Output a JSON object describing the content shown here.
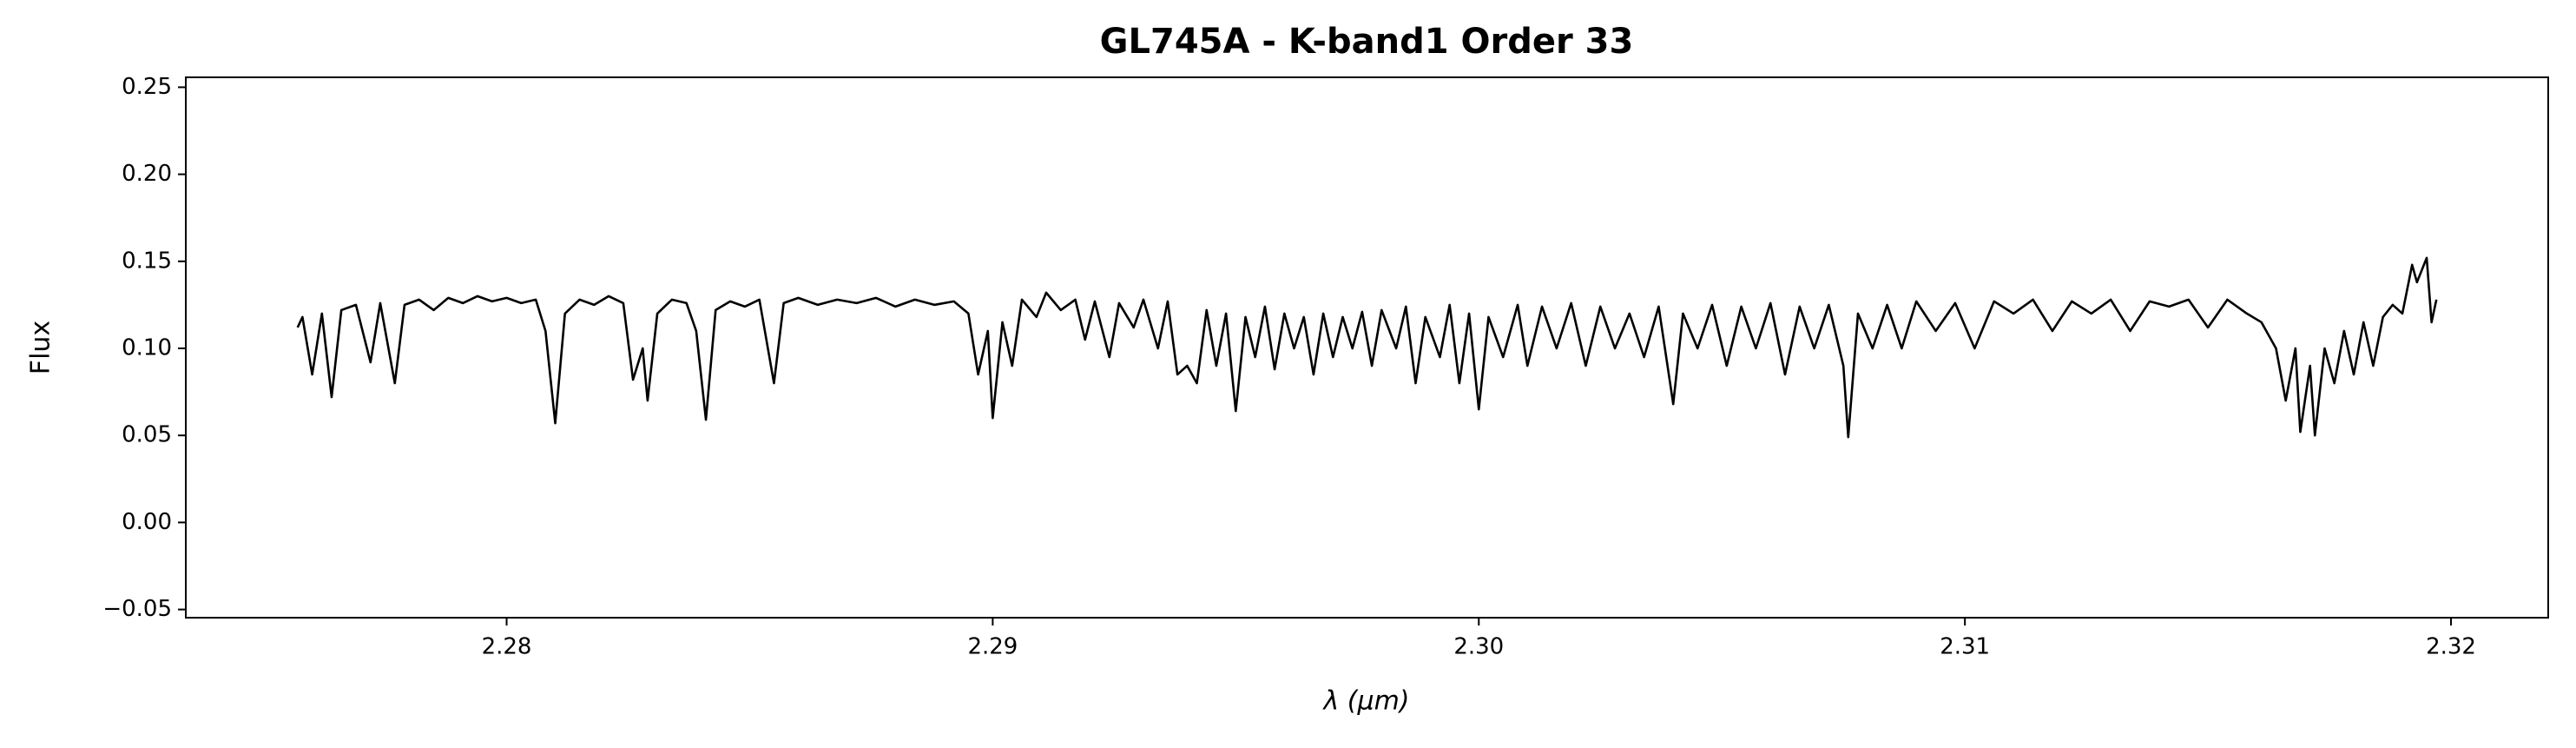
{
  "chart_data": {
    "type": "line",
    "title": "GL745A - K-band1 Order 33",
    "xlabel": "λ (μm)",
    "ylabel": "Flux",
    "color": "#000000",
    "xlim": [
      2.2734,
      2.322
    ],
    "ylim": [
      -0.0547,
      0.2557
    ],
    "xticks": [
      2.28,
      2.29,
      {
        "value": 2.3,
        "label": "2.30"
      },
      2.31,
      2.32
    ],
    "yticks": [
      {
        "value": -0.05,
        "label": "−0.05"
      },
      {
        "value": 0,
        "label": "0.00"
      },
      0.05,
      {
        "value": 0.1,
        "label": "0.10"
      },
      0.15,
      {
        "value": 0.2,
        "label": "0.20"
      },
      0.25
    ],
    "x": [
      2.2757,
      2.2758,
      2.276,
      2.2762,
      2.2764,
      2.2766,
      2.2769,
      2.2772,
      2.2774,
      2.2777,
      2.2779,
      2.2782,
      2.2785,
      2.2788,
      2.2791,
      2.2794,
      2.2797,
      2.28,
      2.2803,
      2.2806,
      2.2808,
      2.281,
      2.2812,
      2.2815,
      2.2818,
      2.2821,
      2.2824,
      2.2826,
      2.2828,
      2.2829,
      2.2831,
      2.2834,
      2.2837,
      2.2839,
      2.2841,
      2.2843,
      2.2846,
      2.2849,
      2.2852,
      2.2855,
      2.2857,
      2.286,
      2.2864,
      2.2868,
      2.2872,
      2.2876,
      2.288,
      2.2884,
      2.2888,
      2.2892,
      2.2895,
      2.2897,
      2.2899,
      2.29,
      2.2902,
      2.2904,
      2.2906,
      2.2909,
      2.2911,
      2.2914,
      2.2917,
      2.2919,
      2.2921,
      2.2924,
      2.2926,
      2.2929,
      2.2931,
      2.2934,
      2.2936,
      2.2938,
      2.294,
      2.2942,
      2.2944,
      2.2946,
      2.2948,
      2.295,
      2.2952,
      2.2954,
      2.2956,
      2.2958,
      2.296,
      2.2962,
      2.2964,
      2.2966,
      2.2968,
      2.297,
      2.2972,
      2.2974,
      2.2976,
      2.2978,
      2.298,
      2.2983,
      2.2985,
      2.2987,
      2.2989,
      2.2992,
      2.2994,
      2.2996,
      2.2998,
      2.3,
      2.3002,
      2.3005,
      2.3008,
      2.301,
      2.3013,
      2.3016,
      2.3019,
      2.3022,
      2.3025,
      2.3028,
      2.3031,
      2.3034,
      2.3037,
      2.304,
      2.3042,
      2.3045,
      2.3048,
      2.3051,
      2.3054,
      2.3057,
      2.306,
      2.3063,
      2.3066,
      2.3069,
      2.3072,
      2.3075,
      2.3076,
      2.3078,
      2.3081,
      2.3084,
      2.3087,
      2.309,
      2.3094,
      2.3098,
      2.3102,
      2.3106,
      2.311,
      2.3114,
      2.3118,
      2.3122,
      2.3126,
      2.313,
      2.3134,
      2.3138,
      2.3142,
      2.3146,
      2.315,
      2.3154,
      2.3158,
      2.3161,
      2.3164,
      2.3166,
      2.3168,
      2.3169,
      2.3171,
      2.3172,
      2.3174,
      2.3176,
      2.3178,
      2.318,
      2.3182,
      2.3184,
      2.3186,
      2.3188,
      2.319,
      2.3192,
      2.3193,
      2.3195,
      2.3196,
      2.3197
    ],
    "values": [
      0.112,
      0.118,
      0.085,
      0.12,
      0.072,
      0.122,
      0.125,
      0.092,
      0.126,
      0.08,
      0.125,
      0.128,
      0.122,
      0.129,
      0.126,
      0.13,
      0.127,
      0.129,
      0.126,
      0.128,
      0.11,
      0.057,
      0.12,
      0.128,
      0.125,
      0.13,
      0.126,
      0.082,
      0.1,
      0.07,
      0.12,
      0.128,
      0.126,
      0.11,
      0.059,
      0.122,
      0.127,
      0.124,
      0.128,
      0.08,
      0.126,
      0.129,
      0.125,
      0.128,
      0.126,
      0.129,
      0.124,
      0.128,
      0.125,
      0.127,
      0.12,
      0.085,
      0.11,
      0.06,
      0.115,
      0.09,
      0.128,
      0.118,
      0.132,
      0.122,
      0.128,
      0.105,
      0.127,
      0.095,
      0.126,
      0.112,
      0.128,
      0.1,
      0.127,
      0.085,
      0.09,
      0.08,
      0.122,
      0.09,
      0.12,
      0.064,
      0.118,
      0.095,
      0.124,
      0.088,
      0.12,
      0.1,
      0.118,
      0.085,
      0.12,
      0.095,
      0.118,
      0.1,
      0.121,
      0.09,
      0.122,
      0.1,
      0.124,
      0.08,
      0.118,
      0.095,
      0.125,
      0.08,
      0.12,
      0.065,
      0.118,
      0.095,
      0.125,
      0.09,
      0.124,
      0.1,
      0.126,
      0.09,
      0.124,
      0.1,
      0.12,
      0.095,
      0.124,
      0.068,
      0.12,
      0.1,
      0.125,
      0.09,
      0.124,
      0.1,
      0.126,
      0.085,
      0.124,
      0.1,
      0.125,
      0.09,
      0.049,
      0.12,
      0.1,
      0.125,
      0.1,
      0.127,
      0.11,
      0.126,
      0.1,
      0.127,
      0.12,
      0.128,
      0.11,
      0.127,
      0.12,
      0.128,
      0.11,
      0.127,
      0.124,
      0.128,
      0.112,
      0.128,
      0.12,
      0.115,
      0.1,
      0.07,
      0.1,
      0.052,
      0.09,
      0.05,
      0.1,
      0.08,
      0.11,
      0.085,
      0.115,
      0.09,
      0.118,
      0.125,
      0.12,
      0.148,
      0.138,
      0.152,
      0.115,
      0.128
    ]
  }
}
